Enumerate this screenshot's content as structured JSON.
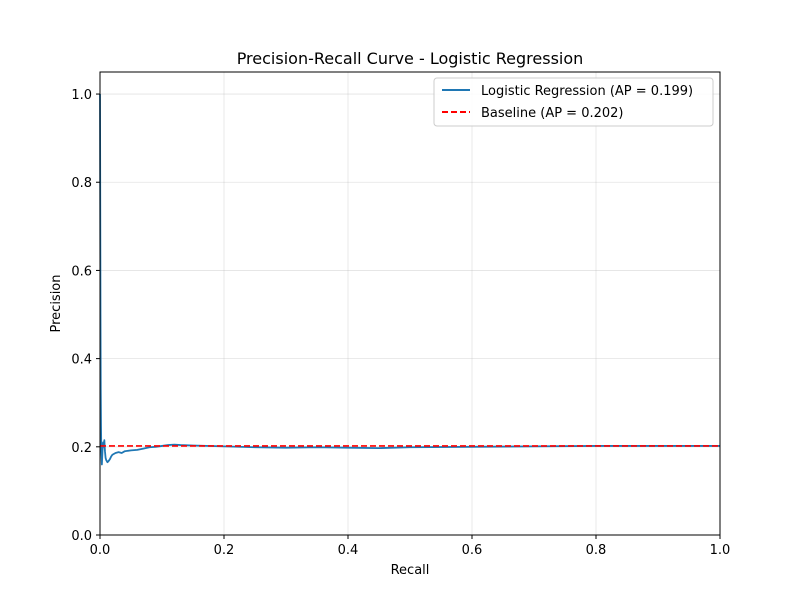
{
  "chart_data": {
    "type": "line",
    "title": "Precision-Recall Curve - Logistic Regression",
    "xlabel": "Recall",
    "ylabel": "Precision",
    "xlim": [
      0.0,
      1.0
    ],
    "ylim": [
      0.0,
      1.05
    ],
    "grid": true,
    "legend_position": "top-right",
    "x_ticks": [
      0.0,
      0.2,
      0.4,
      0.6,
      0.8,
      1.0
    ],
    "y_ticks": [
      0.0,
      0.2,
      0.4,
      0.6,
      0.8,
      1.0
    ],
    "x_tick_labels": [
      "0.0",
      "0.2",
      "0.4",
      "0.6",
      "0.8",
      "1.0"
    ],
    "y_tick_labels": [
      "0.0",
      "0.2",
      "0.4",
      "0.6",
      "0.8",
      "1.0"
    ],
    "series": [
      {
        "name": "Logistic Regression (AP = 0.199)",
        "color": "#1f77b4",
        "style": "solid",
        "x": [
          0.0,
          0.0004,
          0.0008,
          0.0012,
          0.0016,
          0.002,
          0.003,
          0.004,
          0.005,
          0.006,
          0.007,
          0.008,
          0.009,
          0.01,
          0.012,
          0.014,
          0.016,
          0.018,
          0.02,
          0.025,
          0.03,
          0.035,
          0.04,
          0.05,
          0.06,
          0.07,
          0.08,
          0.09,
          0.1,
          0.11,
          0.12,
          0.13,
          0.15,
          0.2,
          0.25,
          0.3,
          0.35,
          0.4,
          0.45,
          0.5,
          0.6,
          0.7,
          0.8,
          0.9,
          1.0
        ],
        "y": [
          1.0,
          0.75,
          0.5,
          0.33,
          0.25,
          0.2,
          0.16,
          0.19,
          0.21,
          0.2,
          0.215,
          0.19,
          0.175,
          0.17,
          0.165,
          0.168,
          0.172,
          0.178,
          0.182,
          0.186,
          0.188,
          0.186,
          0.19,
          0.192,
          0.193,
          0.196,
          0.199,
          0.2,
          0.202,
          0.204,
          0.205,
          0.204,
          0.203,
          0.201,
          0.199,
          0.198,
          0.199,
          0.198,
          0.197,
          0.199,
          0.2,
          0.201,
          0.202,
          0.202,
          0.202
        ]
      },
      {
        "name": "Baseline (AP = 0.202)",
        "color": "#ff0000",
        "style": "dashed",
        "x": [
          0.0,
          1.0
        ],
        "y": [
          0.202,
          0.202
        ]
      }
    ]
  }
}
